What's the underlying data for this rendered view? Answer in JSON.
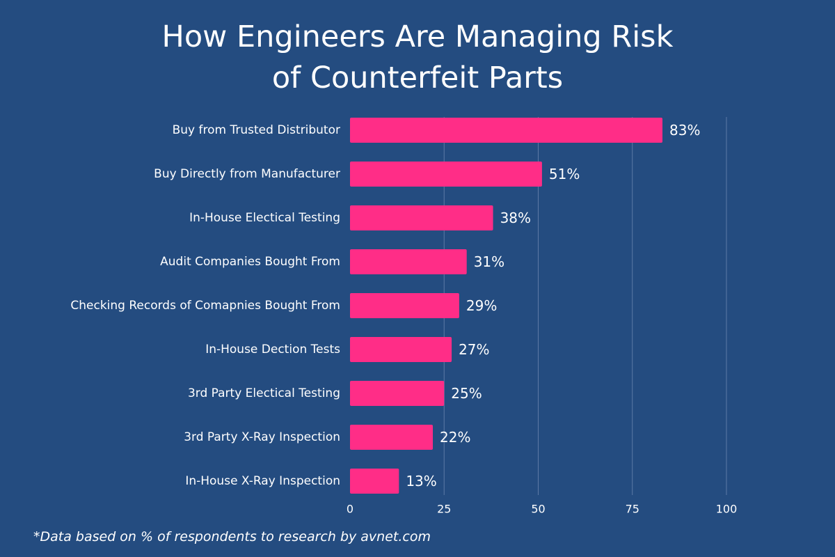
{
  "chart_data": {
    "type": "bar",
    "orientation": "horizontal",
    "title": [
      "How Engineers Are Managing Risk",
      "of Counterfeit Parts"
    ],
    "categories": [
      "Buy from Trusted Distributor",
      "Buy Directly from Manufacturer",
      "In-House Electical Testing",
      "Audit Companies Bought From",
      "Checking Records of Comapnies Bought From",
      "In-House Dection Tests",
      "3rd Party Electical Testing",
      "3rd Party X-Ray Inspection",
      "In-House X-Ray Inspection"
    ],
    "values": [
      83,
      51,
      38,
      31,
      29,
      27,
      25,
      22,
      13
    ],
    "data_labels": [
      "83%",
      "51%",
      "38%",
      "31%",
      "29%",
      "27%",
      "25%",
      "22%",
      "13%"
    ],
    "xlim": [
      0,
      100
    ],
    "xticks": [
      0,
      25,
      50,
      75,
      100
    ],
    "grid": true,
    "legend": "none",
    "xlabel": "",
    "ylabel": "",
    "footnote": "*Data based on % of respondents to research by avnet.com"
  },
  "colors": {
    "background": "#244c80",
    "bar": "#ff2d87",
    "text": "#ffffff",
    "grid": "#5d7aa6"
  }
}
